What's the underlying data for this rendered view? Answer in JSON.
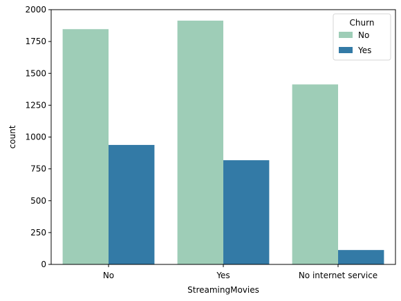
{
  "chart_data": {
    "type": "bar",
    "xlabel": "StreamingMovies",
    "ylabel": "count",
    "categories": [
      "No",
      "Yes",
      "No internet service"
    ],
    "series": [
      {
        "name": "No",
        "color": "#9ecdb7",
        "values": [
          1847,
          1914,
          1413
        ]
      },
      {
        "name": "Yes",
        "color": "#337aa6",
        "values": [
          938,
          818,
          113
        ]
      }
    ],
    "ylim": [
      0,
      2000
    ],
    "yticks": [
      0,
      250,
      500,
      750,
      1000,
      1250,
      1500,
      1750,
      2000
    ],
    "grid": false,
    "legend": {
      "title": "Churn",
      "placement": "top-right"
    }
  }
}
